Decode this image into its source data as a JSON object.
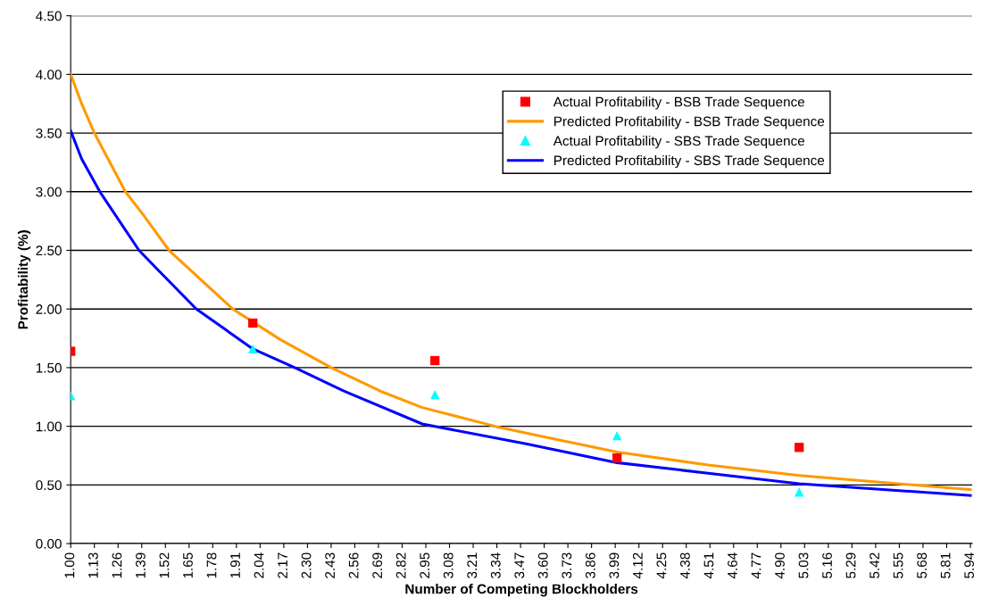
{
  "chart_data": {
    "type": "line",
    "xlabel": "Number of Competing Blockholders",
    "ylabel": "Profitability (%)",
    "xlim": [
      1.0,
      5.95
    ],
    "xticks": [
      {
        "value": 1.0,
        "label": "1.00"
      },
      {
        "value": 1.13,
        "label": "1.13"
      },
      {
        "value": 1.26,
        "label": "1.26"
      },
      {
        "value": 1.39,
        "label": "1.39"
      },
      {
        "value": 1.52,
        "label": "1.52"
      },
      {
        "value": 1.65,
        "label": "1.65"
      },
      {
        "value": 1.78,
        "label": "1.78"
      },
      {
        "value": 1.91,
        "label": "1.91"
      },
      {
        "value": 2.04,
        "label": "2.04"
      },
      {
        "value": 2.17,
        "label": "2.17"
      },
      {
        "value": 2.3,
        "label": "2.30"
      },
      {
        "value": 2.43,
        "label": "2.43"
      },
      {
        "value": 2.56,
        "label": "2.56"
      },
      {
        "value": 2.69,
        "label": "2.69"
      },
      {
        "value": 2.82,
        "label": "2.82"
      },
      {
        "value": 2.95,
        "label": "2.95"
      },
      {
        "value": 3.08,
        "label": "3.08"
      },
      {
        "value": 3.21,
        "label": "3.21"
      },
      {
        "value": 3.34,
        "label": "3.34"
      },
      {
        "value": 3.47,
        "label": "3.47"
      },
      {
        "value": 3.6,
        "label": "3.60"
      },
      {
        "value": 3.73,
        "label": "3.73"
      },
      {
        "value": 3.86,
        "label": "3.86"
      },
      {
        "value": 3.99,
        "label": "3.99"
      },
      {
        "value": 4.12,
        "label": "4.12"
      },
      {
        "value": 4.25,
        "label": "4.25"
      },
      {
        "value": 4.38,
        "label": "4.38"
      },
      {
        "value": 4.51,
        "label": "4.51"
      },
      {
        "value": 4.64,
        "label": "4.64"
      },
      {
        "value": 4.77,
        "label": "4.77"
      },
      {
        "value": 4.9,
        "label": "4.90"
      },
      {
        "value": 5.03,
        "label": "5.03"
      },
      {
        "value": 5.16,
        "label": "5.16"
      },
      {
        "value": 5.29,
        "label": "5.29"
      },
      {
        "value": 5.42,
        "label": "5.42"
      },
      {
        "value": 5.55,
        "label": "5.55"
      },
      {
        "value": 5.68,
        "label": "5.68"
      },
      {
        "value": 5.81,
        "label": "5.81"
      },
      {
        "value": 5.94,
        "label": "5.94"
      }
    ],
    "ylim": [
      0,
      4.5
    ],
    "yticks": [
      {
        "value": 0,
        "label": "0.00"
      },
      {
        "value": 0.5,
        "label": "0.50"
      },
      {
        "value": 1.0,
        "label": "1.00"
      },
      {
        "value": 1.5,
        "label": "1.50"
      },
      {
        "value": 2.0,
        "label": "2.00"
      },
      {
        "value": 2.5,
        "label": "2.50"
      },
      {
        "value": 3.0,
        "label": "3.00"
      },
      {
        "value": 3.5,
        "label": "3.50"
      },
      {
        "value": 4.0,
        "label": "4.00"
      },
      {
        "value": 4.5,
        "label": "4.50"
      }
    ],
    "grid": "y",
    "legend": "top right",
    "series": [
      {
        "name": "Actual Profitability - BSB Trade Sequence",
        "type": "scatter",
        "marker": "square",
        "color": "#ff0000",
        "x": [
          1,
          2,
          3,
          4,
          5
        ],
        "values": [
          1.64,
          1.88,
          1.56,
          0.73,
          0.82
        ]
      },
      {
        "name": "Predicted Profitability - BSB Trade Sequence",
        "marker": "none",
        "color": "#ff9900",
        "x": [
          1.0,
          1.06,
          1.13,
          1.3,
          1.4,
          1.54,
          1.89,
          2.15,
          2.43,
          2.7,
          2.93,
          3.33,
          3.6,
          4.0,
          4.5,
          5.0,
          5.94
        ],
        "values": [
          4.0,
          3.75,
          3.5,
          3.0,
          2.8,
          2.5,
          2.0,
          1.74,
          1.5,
          1.3,
          1.16,
          1.0,
          0.91,
          0.78,
          0.67,
          0.58,
          0.46
        ]
      },
      {
        "name": "Actual Profitability - SBS Trade Sequence",
        "type": "scatter",
        "marker": "triangle",
        "color": "#00ffff",
        "x": [
          1,
          2,
          3,
          4,
          5
        ],
        "values": [
          1.26,
          1.66,
          1.27,
          0.92,
          0.44
        ]
      },
      {
        "name": "Predicted Profitability - SBS Trade Sequence",
        "marker": "none",
        "color": "#0000ff",
        "x": [
          1.0,
          1.06,
          1.16,
          1.375,
          1.5,
          1.69,
          2.0,
          2.23,
          2.5,
          2.93,
          3.5,
          4.0,
          4.5,
          5.0,
          5.94
        ],
        "values": [
          3.52,
          3.28,
          3.0,
          2.5,
          2.3,
          2.0,
          1.66,
          1.5,
          1.3,
          1.02,
          0.85,
          0.69,
          0.6,
          0.51,
          0.41
        ]
      }
    ]
  }
}
